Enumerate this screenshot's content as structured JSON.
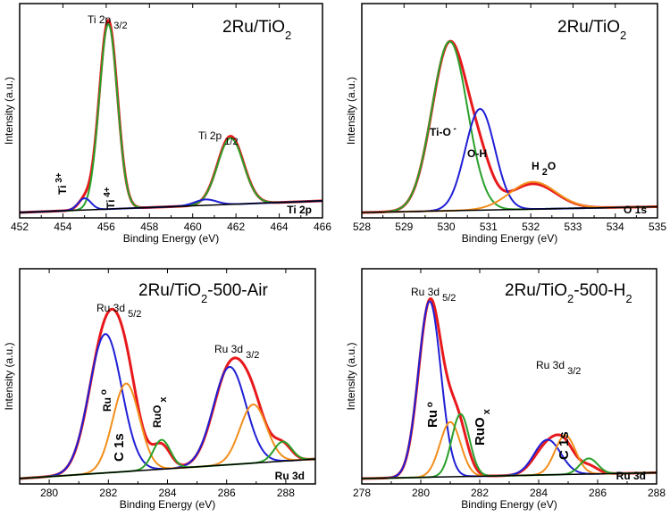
{
  "chart_data": [
    {
      "type": "line",
      "title": "2Ru/TiO",
      "title_sub": "2",
      "xlabel": "Binding Energy (eV)",
      "ylabel": "Intensity (a.u.)",
      "xlim": [
        452,
        466
      ],
      "ylim": [
        0,
        1.0
      ],
      "xticks": [
        452,
        454,
        456,
        458,
        460,
        462,
        464,
        466
      ],
      "corner_label": "Ti 2p",
      "baseline": {
        "left": 0.0,
        "right": 0.06
      },
      "annotations": [
        {
          "id": "ti2p32",
          "main": "Ti  2p",
          "sub": "3/2"
        },
        {
          "id": "ti2p12",
          "main": "Ti  2p",
          "sub": "1/2"
        },
        {
          "id": "ti3",
          "main": "Ti",
          "sup": "3+"
        },
        {
          "id": "ti4",
          "main": "Ti",
          "sup": "4+"
        }
      ],
      "series": [
        {
          "name": "envelope",
          "color": "#e8191c",
          "peaks": [
            [
              456.1,
              0.97,
              0.42
            ],
            [
              461.75,
              0.35,
              0.6
            ],
            [
              455.0,
              0.05,
              0.3
            ]
          ]
        },
        {
          "name": "Ti4+",
          "color": "#2aa02a",
          "peaks": [
            [
              456.1,
              0.95,
              0.42
            ],
            [
              461.75,
              0.34,
              0.6
            ]
          ]
        },
        {
          "name": "Ti3+",
          "color": "#1f1fd6",
          "peaks": [
            [
              455.0,
              0.06,
              0.3
            ],
            [
              460.6,
              0.03,
              0.5
            ]
          ]
        }
      ]
    },
    {
      "type": "line",
      "title": "2Ru/TiO",
      "title_sub": "2",
      "xlabel": "Binding Energy (eV)",
      "ylabel": "Intensity (a.u.)",
      "xlim": [
        528,
        535
      ],
      "ylim": [
        0,
        1.0
      ],
      "xticks": [
        528,
        529,
        530,
        531,
        532,
        533,
        534,
        535
      ],
      "corner_label": "O 1s",
      "baseline": {
        "left": 0.0,
        "right": 0.03
      },
      "annotations": [
        {
          "id": "tio",
          "main": "Ti-O",
          "sup": "-"
        },
        {
          "id": "oh",
          "main": "O-H"
        },
        {
          "id": "h2o",
          "main": "H",
          "sub": "2",
          "tail": "O"
        }
      ],
      "series": [
        {
          "name": "envelope",
          "color": "#e8191c",
          "peaks": [
            [
              530.08,
              0.86,
              0.42
            ],
            [
              530.8,
              0.18,
              0.3
            ],
            [
              532.05,
              0.13,
              0.55
            ]
          ]
        },
        {
          "name": "Ti-O",
          "color": "#2aa02a",
          "peaks": [
            [
              530.08,
              0.87,
              0.42
            ]
          ]
        },
        {
          "name": "O-H",
          "color": "#1f1fd6",
          "peaks": [
            [
              530.8,
              0.52,
              0.35
            ]
          ]
        },
        {
          "name": "H2O",
          "color": "#f28e1b",
          "peaks": [
            [
              532.05,
              0.14,
              0.55
            ]
          ]
        }
      ]
    },
    {
      "type": "line",
      "title": "2Ru/TiO",
      "title_sub": "2",
      "title_tail": "-500-Air",
      "xlabel": "Binding Energy (eV)",
      "ylabel": "Intensity (a.u.)",
      "xlim": [
        279,
        289
      ],
      "ylim": [
        0,
        1.0
      ],
      "xticks": [
        280,
        282,
        284,
        286,
        288
      ],
      "corner_label": "Ru 3d",
      "baseline": {
        "left": 0.0,
        "right": 0.1
      },
      "annotations": [
        {
          "id": "ru32",
          "main": "Ru 3d",
          "sub": "5/2"
        },
        {
          "id": "ru12",
          "main": "Ru 3d",
          "sub": "3/2"
        },
        {
          "id": "ru0",
          "main": "Ru",
          "sup": "o"
        },
        {
          "id": "c1s",
          "main": "C 1s"
        },
        {
          "id": "ruox",
          "main": "RuO",
          "sub": "x"
        }
      ],
      "series": [
        {
          "name": "envelope",
          "color": "#e8191c",
          "peaks": [
            [
              281.9,
              0.69,
              0.55
            ],
            [
              282.6,
              0.35,
              0.45
            ],
            [
              283.8,
              0.12,
              0.3
            ],
            [
              286.1,
              0.48,
              0.55
            ],
            [
              286.9,
              0.23,
              0.45
            ],
            [
              287.9,
              0.08,
              0.3
            ]
          ]
        },
        {
          "name": "Ru0",
          "color": "#1f1fd6",
          "peaks": [
            [
              281.9,
              0.71,
              0.55
            ],
            [
              286.1,
              0.5,
              0.55
            ]
          ]
        },
        {
          "name": "RuOx",
          "color": "#f28e1b",
          "peaks": [
            [
              282.6,
              0.45,
              0.45
            ],
            [
              286.9,
              0.3,
              0.45
            ]
          ]
        },
        {
          "name": "C 1s",
          "color": "#2aa02a",
          "peaks": [
            [
              283.8,
              0.15,
              0.3
            ],
            [
              287.9,
              0.1,
              0.3
            ]
          ]
        }
      ]
    },
    {
      "type": "line",
      "title": "2Ru/TiO",
      "title_sub": "2",
      "title_tail": "-500-H",
      "title_tail_sub": "2",
      "xlabel": "Binding Energy (eV)",
      "ylabel": "Intensity (a.u.)",
      "xlim": [
        278,
        288
      ],
      "ylim": [
        0,
        1.0
      ],
      "xticks": [
        278,
        280,
        282,
        284,
        286,
        288
      ],
      "corner_label": "Ru 3d",
      "baseline": {
        "left": 0.0,
        "right": 0.03
      },
      "annotations": [
        {
          "id": "ru32",
          "main": "Ru 3d",
          "sub": "5/2"
        },
        {
          "id": "ru12",
          "main": "Ru 3d",
          "sub": "3/2"
        },
        {
          "id": "ru0",
          "main": "Ru",
          "sup": "o"
        },
        {
          "id": "ruox",
          "main": "RuO",
          "sub": "x"
        },
        {
          "id": "c1s",
          "main": "C 1s"
        }
      ],
      "series": [
        {
          "name": "envelope",
          "color": "#e8191c",
          "peaks": [
            [
              280.3,
              0.88,
              0.38
            ],
            [
              281.0,
              0.22,
              0.35
            ],
            [
              281.35,
              0.15,
              0.3
            ],
            [
              284.3,
              0.15,
              0.45
            ],
            [
              284.9,
              0.12,
              0.35
            ],
            [
              285.7,
              0.04,
              0.3
            ]
          ]
        },
        {
          "name": "Ru0",
          "color": "#1f1fd6",
          "peaks": [
            [
              280.3,
              0.9,
              0.38
            ],
            [
              284.3,
              0.18,
              0.45
            ]
          ]
        },
        {
          "name": "RuOx",
          "color": "#f28e1b",
          "peaks": [
            [
              281.0,
              0.28,
              0.35
            ],
            [
              284.9,
              0.2,
              0.35
            ]
          ]
        },
        {
          "name": "C 1s",
          "color": "#2aa02a",
          "peaks": [
            [
              281.35,
              0.32,
              0.3
            ],
            [
              285.7,
              0.08,
              0.3
            ]
          ]
        }
      ]
    }
  ]
}
